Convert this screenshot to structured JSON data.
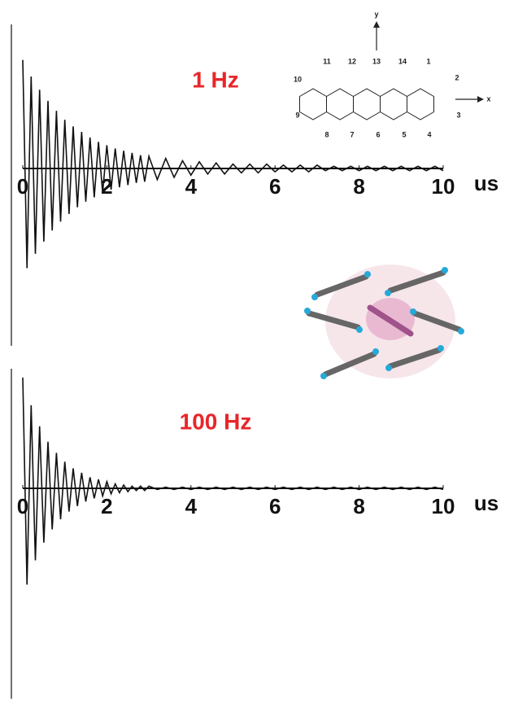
{
  "chart_data": [
    {
      "type": "line",
      "title": "1 Hz",
      "x_unit": "us",
      "x": [
        0,
        0.1,
        0.2,
        0.3,
        0.4,
        0.5,
        0.6,
        0.7,
        0.8,
        0.9,
        1.0,
        1.1,
        1.2,
        1.3,
        1.4,
        1.5,
        1.6,
        1.7,
        1.8,
        1.9,
        2.0,
        2.1,
        2.2,
        2.3,
        2.4,
        2.5,
        2.6,
        2.7,
        2.8,
        2.9,
        3.0,
        3.2,
        3.4,
        3.6,
        3.8,
        4.0,
        4.2,
        4.4,
        4.6,
        4.8,
        5.0,
        5.2,
        5.4,
        5.6,
        5.8,
        6.0,
        6.2,
        6.4,
        6.6,
        6.8,
        7.0,
        7.2,
        7.4,
        7.6,
        7.8,
        8.0,
        8.2,
        8.4,
        8.6,
        8.8,
        9.0,
        9.2,
        9.4,
        9.6,
        9.8,
        10.0
      ],
      "series": [
        {
          "color": "#111111",
          "values": [
            0.98,
            -0.9,
            0.83,
            -0.77,
            0.71,
            -0.66,
            0.61,
            -0.56,
            0.52,
            -0.48,
            0.44,
            -0.41,
            0.38,
            -0.35,
            0.33,
            -0.3,
            0.28,
            -0.26,
            0.24,
            -0.22,
            0.21,
            -0.19,
            0.18,
            -0.17,
            0.16,
            -0.15,
            0.14,
            -0.13,
            0.12,
            -0.12,
            0.11,
            -0.1,
            0.09,
            -0.08,
            0.07,
            -0.06,
            0.06,
            -0.05,
            0.05,
            -0.05,
            0.04,
            -0.04,
            0.04,
            -0.04,
            0.04,
            -0.03,
            0.03,
            -0.03,
            0.03,
            -0.03,
            0.03,
            -0.02,
            0.02,
            -0.02,
            0.02,
            -0.02,
            0.02,
            -0.02,
            0.02,
            -0.02,
            0.02,
            -0.02,
            0.02,
            -0.02,
            0.02,
            -0.02
          ]
        }
      ],
      "xlim": [
        0,
        10
      ],
      "xticks": [
        0,
        2,
        4,
        6,
        8,
        10
      ],
      "ylim": [
        -1.6,
        1.3
      ]
    },
    {
      "type": "line",
      "title": "100 Hz",
      "x_unit": "us",
      "x": [
        0,
        0.1,
        0.2,
        0.3,
        0.4,
        0.5,
        0.6,
        0.7,
        0.8,
        0.9,
        1.0,
        1.1,
        1.2,
        1.3,
        1.4,
        1.5,
        1.6,
        1.7,
        1.8,
        1.9,
        2.0,
        2.1,
        2.2,
        2.3,
        2.4,
        2.5,
        2.6,
        2.7,
        2.8,
        2.9,
        3.0,
        3.2,
        3.4,
        3.6,
        3.8,
        4.0,
        4.2,
        4.4,
        4.6,
        4.8,
        5.0,
        5.2,
        5.4,
        5.6,
        5.8,
        6.0,
        6.2,
        6.4,
        6.6,
        6.8,
        7.0,
        7.2,
        7.4,
        7.6,
        7.8,
        8.0,
        8.2,
        8.4,
        8.6,
        8.8,
        9.0,
        9.2,
        9.4,
        9.6,
        9.8,
        10.0
      ],
      "series": [
        {
          "color": "#111111",
          "values": [
            1.0,
            -0.87,
            0.75,
            -0.65,
            0.56,
            -0.49,
            0.42,
            -0.37,
            0.32,
            -0.28,
            0.24,
            -0.21,
            0.18,
            -0.16,
            0.14,
            -0.12,
            0.1,
            -0.09,
            0.08,
            -0.07,
            0.06,
            -0.05,
            0.04,
            -0.04,
            0.03,
            -0.03,
            0.02,
            -0.02,
            0.02,
            -0.02,
            0.02,
            -0.01,
            0.01,
            -0.01,
            0.01,
            -0.01,
            0.01,
            -0.01,
            0.01,
            -0.01,
            0.01,
            -0.01,
            0.01,
            -0.01,
            0.01,
            -0.01,
            0.01,
            -0.01,
            0.01,
            -0.01,
            0.01,
            -0.01,
            0.01,
            -0.01,
            0.01,
            -0.01,
            0.01,
            -0.01,
            0.01,
            -0.01,
            0.01,
            -0.01,
            0.01,
            -0.01,
            0.01,
            -0.01
          ]
        }
      ],
      "xlim": [
        0,
        10
      ],
      "xticks": [
        0,
        2,
        4,
        6,
        8,
        10
      ],
      "ylim": [
        -1.9,
        1.08
      ]
    }
  ],
  "inset": {
    "axis_y": "y",
    "axis_x": "x",
    "labels": [
      "11",
      "12",
      "13",
      "14",
      "1",
      "2",
      "3",
      "4",
      "5",
      "6",
      "7",
      "8",
      "9",
      "10"
    ]
  }
}
